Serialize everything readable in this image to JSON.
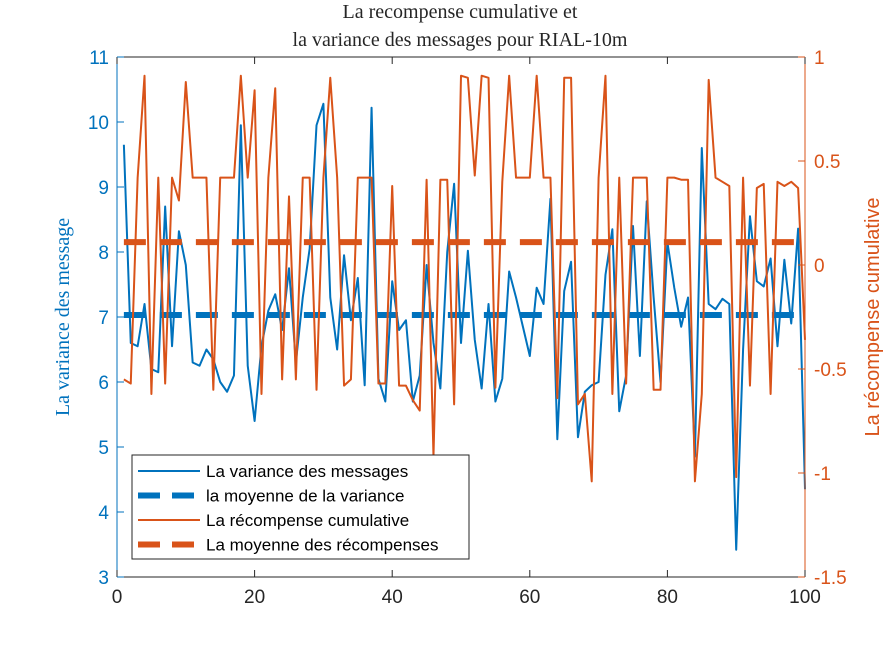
{
  "colors": {
    "variance": "#0072BD",
    "reward": "#D95319",
    "axis_text": "#262626"
  },
  "chart_data": {
    "type": "line",
    "title_line1": "La recompense cumulative et",
    "title_line2": "la variance des messages pour RIAL-10m",
    "ylabel_left": "La variance des message",
    "ylabel_right": "La récompense cumulative",
    "xlim": [
      0,
      100
    ],
    "ylim_left": [
      3,
      11
    ],
    "ylim_right": [
      -1.5,
      1
    ],
    "xticks": [
      0,
      20,
      40,
      60,
      80,
      100
    ],
    "yticks_left": [
      3,
      4,
      5,
      6,
      7,
      8,
      9,
      10,
      11
    ],
    "yticks_right": [
      -1.5,
      -1,
      -0.5,
      0,
      0.5,
      1
    ],
    "legend_position": "bottom-left",
    "series": [
      {
        "name": "La variance des messages",
        "axis": "left",
        "style": "solid",
        "x": [
          1,
          2,
          3,
          4,
          5,
          6,
          7,
          8,
          9,
          10,
          11,
          12,
          13,
          14,
          15,
          16,
          17,
          18,
          19,
          20,
          21,
          22,
          23,
          24,
          25,
          26,
          27,
          28,
          29,
          30,
          31,
          32,
          33,
          34,
          35,
          36,
          37,
          38,
          39,
          40,
          41,
          42,
          43,
          44,
          45,
          46,
          47,
          48,
          49,
          50,
          51,
          52,
          53,
          54,
          55,
          56,
          57,
          58,
          59,
          60,
          61,
          62,
          63,
          64,
          65,
          66,
          67,
          68,
          69,
          70,
          71,
          72,
          73,
          74,
          75,
          76,
          77,
          78,
          79,
          80,
          81,
          82,
          83,
          84,
          85,
          86,
          87,
          88,
          89,
          90,
          91,
          92,
          93,
          94,
          95,
          96,
          97,
          98,
          99,
          100
        ],
        "values": [
          9.65,
          6.6,
          6.55,
          7.2,
          6.2,
          6.15,
          8.7,
          6.55,
          8.32,
          7.8,
          6.3,
          6.25,
          6.5,
          6.35,
          6.0,
          5.85,
          6.1,
          9.95,
          6.25,
          5.4,
          6.55,
          7.1,
          7.35,
          6.8,
          7.75,
          6.3,
          7.3,
          8.05,
          9.95,
          10.28,
          7.3,
          6.5,
          7.95,
          6.95,
          7.6,
          5.95,
          10.22,
          6.05,
          5.7,
          7.55,
          6.8,
          6.95,
          5.7,
          6.1,
          7.8,
          6.6,
          5.9,
          8.0,
          9.05,
          6.6,
          8.02,
          6.65,
          5.9,
          7.2,
          5.7,
          6.05,
          7.7,
          7.3,
          6.85,
          6.4,
          7.45,
          7.2,
          8.82,
          5.12,
          7.4,
          7.85,
          5.15,
          5.85,
          5.95,
          6.0,
          7.65,
          8.35,
          5.55,
          6.1,
          8.4,
          6.4,
          8.78,
          7.3,
          6.0,
          8.15,
          7.45,
          6.85,
          7.3,
          4.85,
          9.6,
          7.2,
          7.12,
          7.28,
          7.2,
          3.42,
          6.5,
          8.55,
          7.55,
          7.47,
          7.9,
          6.55,
          7.88,
          6.9,
          8.36,
          4.35
        ]
      },
      {
        "name": "la moyenne de la variance",
        "axis": "left",
        "style": "dashed",
        "x": [
          1,
          100
        ],
        "values": [
          7.03,
          7.03
        ]
      },
      {
        "name": "La récompense cumulative",
        "axis": "right",
        "style": "solid",
        "x": [
          1,
          2,
          3,
          4,
          5,
          6,
          7,
          8,
          9,
          10,
          11,
          12,
          13,
          14,
          15,
          16,
          17,
          18,
          19,
          20,
          21,
          22,
          23,
          24,
          25,
          26,
          27,
          28,
          29,
          30,
          31,
          32,
          33,
          34,
          35,
          36,
          37,
          38,
          39,
          40,
          41,
          42,
          43,
          44,
          45,
          46,
          47,
          48,
          49,
          50,
          51,
          52,
          53,
          54,
          55,
          56,
          57,
          58,
          59,
          60,
          61,
          62,
          63,
          64,
          65,
          66,
          67,
          68,
          69,
          70,
          71,
          72,
          73,
          74,
          75,
          76,
          77,
          78,
          79,
          80,
          81,
          82,
          83,
          84,
          85,
          86,
          87,
          88,
          89,
          90,
          91,
          92,
          93,
          94,
          95,
          96,
          97,
          98,
          99,
          100
        ],
        "values": [
          -0.55,
          -0.57,
          0.42,
          0.91,
          -0.62,
          0.42,
          -0.57,
          0.42,
          0.31,
          0.88,
          0.42,
          0.42,
          0.42,
          -0.6,
          0.42,
          0.42,
          0.42,
          0.91,
          0.42,
          0.84,
          -0.62,
          0.42,
          0.85,
          -0.55,
          0.33,
          -0.55,
          0.42,
          0.42,
          -0.6,
          0.42,
          0.9,
          0.42,
          -0.58,
          -0.55,
          0.42,
          0.42,
          0.42,
          -0.57,
          -0.57,
          0.38,
          -0.58,
          -0.58,
          -0.65,
          -0.7,
          0.41,
          -0.92,
          0.41,
          0.41,
          -0.67,
          0.91,
          0.9,
          0.43,
          0.91,
          0.9,
          -0.59,
          0.4,
          0.91,
          0.42,
          0.42,
          0.42,
          0.91,
          0.42,
          0.42,
          -0.64,
          0.9,
          0.9,
          -0.67,
          -0.62,
          -1.04,
          0.42,
          0.91,
          -0.62,
          0.42,
          -0.57,
          0.42,
          0.42,
          0.42,
          -0.6,
          -0.6,
          0.42,
          0.42,
          0.41,
          0.41,
          -1.04,
          -0.62,
          0.89,
          0.42,
          0.4,
          0.38,
          -1.02,
          0.42,
          -0.58,
          0.37,
          0.39,
          -0.62,
          0.4,
          0.38,
          0.4,
          0.37,
          -0.36
        ]
      },
      {
        "name": "La moyenne des récompenses",
        "axis": "right",
        "style": "dashed",
        "x": [
          1,
          100
        ],
        "values": [
          0.11,
          0.11
        ]
      }
    ]
  }
}
